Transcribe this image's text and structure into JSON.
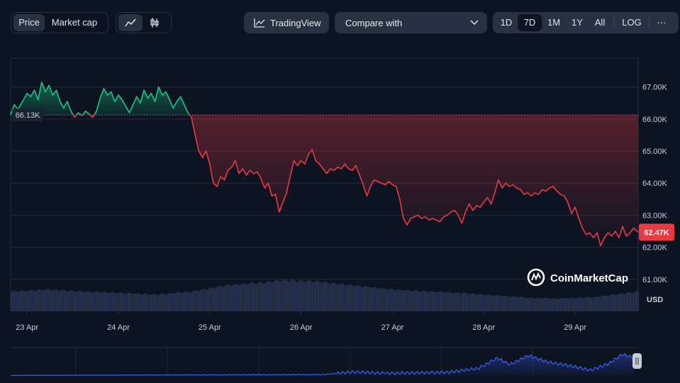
{
  "toolbar": {
    "metric_tabs": [
      "Price",
      "Market cap"
    ],
    "metric_active": "Price",
    "chart_type_icons": [
      "line-chart-icon",
      "candlestick-icon"
    ],
    "tradingview_label": "TradingView",
    "compare_label": "Compare with",
    "ranges": [
      "1D",
      "7D",
      "1M",
      "1Y",
      "All"
    ],
    "range_active": "7D",
    "log_label": "LOG",
    "more_label": "···"
  },
  "chart_data": {
    "type": "line",
    "unit_label": "USD",
    "y_ticks": [
      "61.00K",
      "62.00K",
      "63.00K",
      "64.00K",
      "65.00K",
      "66.00K",
      "67.00K"
    ],
    "ylim": [
      60000,
      67900
    ],
    "x_tick_labels": [
      "23 Apr",
      "24 Apr",
      "25 Apr",
      "26 Apr",
      "27 Apr",
      "28 Apr",
      "29 Apr"
    ],
    "xlim_days": [
      22.82,
      29.69
    ],
    "reference_price": 66130,
    "reference_label": "66.13K",
    "current_price": 62470,
    "current_label": "62.47K",
    "colors": {
      "up": "#16c784",
      "down": "#ea3943",
      "volume": "#2c3856",
      "navigator": "#3861fb"
    },
    "series": [
      {
        "values": [
          [
            22.82,
            66150
          ],
          [
            22.86,
            66450
          ],
          [
            22.9,
            66300
          ],
          [
            22.95,
            66550
          ],
          [
            23.0,
            66800
          ],
          [
            23.04,
            66700
          ],
          [
            23.08,
            66900
          ],
          [
            23.12,
            66600
          ],
          [
            23.16,
            67150
          ],
          [
            23.2,
            66850
          ],
          [
            23.24,
            67050
          ],
          [
            23.28,
            66750
          ],
          [
            23.32,
            66900
          ],
          [
            23.36,
            66550
          ],
          [
            23.4,
            66350
          ],
          [
            23.44,
            66550
          ],
          [
            23.48,
            66250
          ],
          [
            23.52,
            66050
          ],
          [
            23.56,
            66200
          ],
          [
            23.6,
            66100
          ],
          [
            23.64,
            66250
          ],
          [
            23.68,
            66150
          ],
          [
            23.72,
            66050
          ],
          [
            23.76,
            66250
          ],
          [
            23.8,
            66650
          ],
          [
            23.84,
            66950
          ],
          [
            23.88,
            66750
          ],
          [
            23.92,
            66850
          ],
          [
            23.96,
            66550
          ],
          [
            24.0,
            66750
          ],
          [
            24.04,
            66600
          ],
          [
            24.08,
            66400
          ],
          [
            24.12,
            66200
          ],
          [
            24.16,
            66450
          ],
          [
            24.2,
            66700
          ],
          [
            24.24,
            66500
          ],
          [
            24.28,
            66900
          ],
          [
            24.32,
            66650
          ],
          [
            24.36,
            66800
          ],
          [
            24.4,
            66550
          ],
          [
            24.44,
            67000
          ],
          [
            24.48,
            66750
          ],
          [
            24.52,
            66850
          ],
          [
            24.56,
            66600
          ],
          [
            24.6,
            66350
          ],
          [
            24.64,
            66550
          ],
          [
            24.68,
            66700
          ],
          [
            24.72,
            66450
          ],
          [
            24.76,
            66200
          ],
          [
            24.8,
            66050
          ],
          [
            24.84,
            65500
          ],
          [
            24.88,
            65000
          ],
          [
            24.92,
            64800
          ],
          [
            24.96,
            65000
          ],
          [
            25.0,
            64600
          ],
          [
            25.04,
            64000
          ],
          [
            25.08,
            63900
          ],
          [
            25.12,
            64200
          ],
          [
            25.16,
            64100
          ],
          [
            25.2,
            64400
          ],
          [
            25.24,
            64500
          ],
          [
            25.28,
            64700
          ],
          [
            25.32,
            64300
          ],
          [
            25.36,
            64450
          ],
          [
            25.4,
            64250
          ],
          [
            25.44,
            64400
          ],
          [
            25.48,
            64300
          ],
          [
            25.52,
            64350
          ],
          [
            25.56,
            64150
          ],
          [
            25.6,
            63850
          ],
          [
            25.64,
            64000
          ],
          [
            25.68,
            63600
          ],
          [
            25.72,
            63650
          ],
          [
            25.76,
            63100
          ],
          [
            25.8,
            63400
          ],
          [
            25.84,
            63700
          ],
          [
            25.88,
            64200
          ],
          [
            25.92,
            64700
          ],
          [
            25.96,
            64550
          ],
          [
            26.0,
            64700
          ],
          [
            26.04,
            64600
          ],
          [
            26.08,
            64900
          ],
          [
            26.12,
            65050
          ],
          [
            26.16,
            64700
          ],
          [
            26.2,
            64600
          ],
          [
            26.24,
            64450
          ],
          [
            26.28,
            64300
          ],
          [
            26.32,
            64450
          ],
          [
            26.36,
            64400
          ],
          [
            26.4,
            64500
          ],
          [
            26.44,
            64450
          ],
          [
            26.48,
            64600
          ],
          [
            26.52,
            64450
          ],
          [
            26.56,
            64400
          ],
          [
            26.6,
            64550
          ],
          [
            26.64,
            64250
          ],
          [
            26.68,
            63950
          ],
          [
            26.72,
            63600
          ],
          [
            26.76,
            63900
          ],
          [
            26.8,
            64100
          ],
          [
            26.84,
            64050
          ],
          [
            26.88,
            64000
          ],
          [
            26.92,
            63950
          ],
          [
            26.96,
            64050
          ],
          [
            27.0,
            63950
          ],
          [
            27.04,
            63900
          ],
          [
            27.08,
            63500
          ],
          [
            27.12,
            62900
          ],
          [
            27.16,
            62700
          ],
          [
            27.2,
            62900
          ],
          [
            27.24,
            62950
          ],
          [
            27.28,
            63000
          ],
          [
            27.32,
            62900
          ],
          [
            27.36,
            62950
          ],
          [
            27.4,
            62850
          ],
          [
            27.44,
            62900
          ],
          [
            27.48,
            62850
          ],
          [
            27.52,
            62800
          ],
          [
            27.56,
            62950
          ],
          [
            27.6,
            63000
          ],
          [
            27.64,
            63100
          ],
          [
            27.68,
            63150
          ],
          [
            27.72,
            63000
          ],
          [
            27.76,
            62750
          ],
          [
            27.8,
            63100
          ],
          [
            27.84,
            63350
          ],
          [
            27.88,
            63150
          ],
          [
            27.92,
            63300
          ],
          [
            27.96,
            63250
          ],
          [
            28.0,
            63400
          ],
          [
            28.04,
            63550
          ],
          [
            28.08,
            63350
          ],
          [
            28.12,
            63700
          ],
          [
            28.16,
            64100
          ],
          [
            28.2,
            63850
          ],
          [
            28.24,
            64000
          ],
          [
            28.28,
            63900
          ],
          [
            28.32,
            63950
          ],
          [
            28.36,
            63850
          ],
          [
            28.4,
            63800
          ],
          [
            28.44,
            63650
          ],
          [
            28.48,
            63700
          ],
          [
            28.52,
            63600
          ],
          [
            28.56,
            63700
          ],
          [
            28.6,
            63650
          ],
          [
            28.64,
            63800
          ],
          [
            28.68,
            63750
          ],
          [
            28.72,
            63850
          ],
          [
            28.76,
            63900
          ],
          [
            28.8,
            63750
          ],
          [
            28.84,
            63650
          ],
          [
            28.88,
            63600
          ],
          [
            28.92,
            63400
          ],
          [
            28.96,
            63050
          ],
          [
            29.0,
            63250
          ],
          [
            29.04,
            62900
          ],
          [
            29.08,
            62600
          ],
          [
            29.12,
            62400
          ],
          [
            29.16,
            62450
          ],
          [
            29.2,
            62300
          ],
          [
            29.24,
            62450
          ],
          [
            29.28,
            62050
          ],
          [
            29.32,
            62300
          ],
          [
            29.36,
            62450
          ],
          [
            29.4,
            62350
          ],
          [
            29.44,
            62500
          ],
          [
            29.48,
            62300
          ],
          [
            29.52,
            62650
          ],
          [
            29.56,
            62350
          ],
          [
            29.6,
            62450
          ],
          [
            29.64,
            62600
          ],
          [
            29.69,
            62470
          ]
        ]
      }
    ],
    "volume_levels": [
      [
        22.82,
        0.62
      ],
      [
        23.2,
        0.68
      ],
      [
        23.6,
        0.62
      ],
      [
        24.0,
        0.58
      ],
      [
        24.4,
        0.52
      ],
      [
        24.8,
        0.62
      ],
      [
        25.2,
        0.82
      ],
      [
        25.6,
        0.9
      ],
      [
        25.8,
        0.98
      ],
      [
        26.2,
        0.92
      ],
      [
        26.6,
        0.8
      ],
      [
        27.0,
        0.68
      ],
      [
        27.4,
        0.62
      ],
      [
        27.8,
        0.56
      ],
      [
        28.2,
        0.48
      ],
      [
        28.5,
        0.42
      ],
      [
        28.8,
        0.4
      ],
      [
        29.2,
        0.44
      ],
      [
        29.69,
        0.62
      ]
    ],
    "navigator_levels": [
      [
        0.0,
        0.02
      ],
      [
        0.5,
        0.05
      ],
      [
        0.55,
        0.16
      ],
      [
        0.6,
        0.1
      ],
      [
        0.7,
        0.14
      ],
      [
        0.75,
        0.3
      ],
      [
        0.78,
        0.7
      ],
      [
        0.8,
        0.45
      ],
      [
        0.83,
        0.8
      ],
      [
        0.86,
        0.55
      ],
      [
        0.9,
        0.38
      ],
      [
        0.93,
        0.22
      ],
      [
        0.96,
        0.5
      ],
      [
        0.98,
        0.85
      ],
      [
        1.0,
        0.7
      ]
    ],
    "watermark": "CoinMarketCap"
  }
}
